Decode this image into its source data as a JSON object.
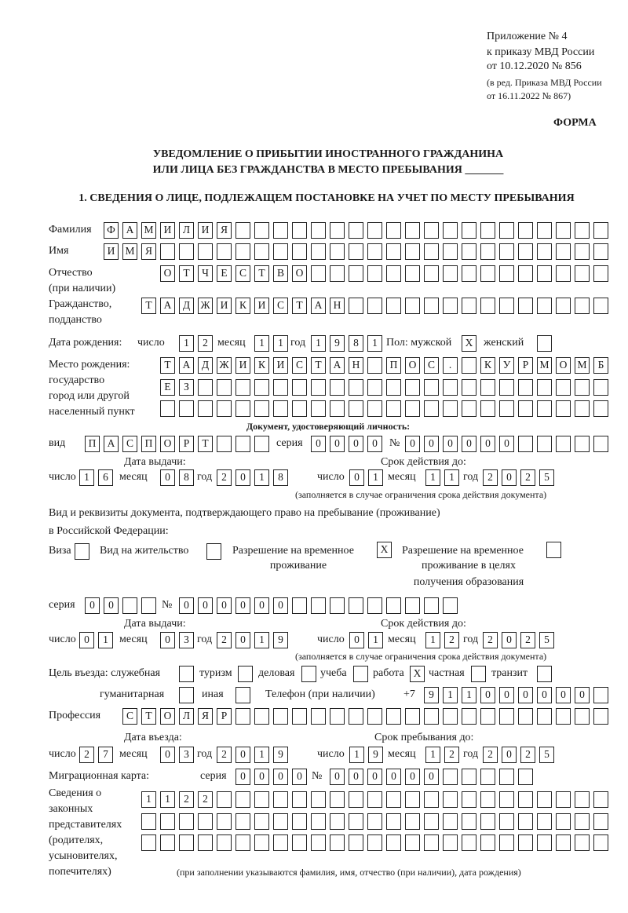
{
  "header": {
    "appendix": "Приложение № 4",
    "order": "к приказу МВД России",
    "order_date": "от 10.12.2020 № 856",
    "revision_line1": "(в ред. Приказа МВД России",
    "revision_line2": "от 16.11.2022 № 867)",
    "form_label": "ФОРМА",
    "title_line1": "УВЕДОМЛЕНИЕ О ПРИБЫТИИ ИНОСТРАННОГО ГРАЖДАНИНА",
    "title_line2": "ИЛИ ЛИЦА БЕЗ ГРАЖДАНСТВА В МЕСТО ПРЕБЫВАНИЯ _______",
    "section1": "1. СВЕДЕНИЯ О ЛИЦЕ, ПОДЛЕЖАЩЕМ ПОСТАНОВКЕ НА УЧЕТ ПО МЕСТУ ПРЕБЫВАНИЯ"
  },
  "labels": {
    "surname": "Фамилия",
    "name": "Имя",
    "patronymic": "Отчество",
    "patronymic_note": "(при наличии)",
    "citizenship": "Гражданство,",
    "citizenship2": "подданство",
    "birth_date": "Дата рождения:",
    "day": "число",
    "month": "месяц",
    "year": "год",
    "sex": "Пол: мужской",
    "female": "женский",
    "birthplace1": "Место рождения:",
    "birthplace2": "государство",
    "birthplace3": "город или другой",
    "birthplace4": "населенный пункт",
    "id_doc": "Документ, удостоверяющий личность:",
    "doc_kind": "вид",
    "series": "серия",
    "number": "№",
    "issue_date": "Дата выдачи:",
    "valid_until": "Срок действия до:",
    "validity_note": "(заполняется в случае ограничения срока действия документа)",
    "stay_doc1": "Вид и реквизиты документа, подтверждающего право на пребывание (проживание)",
    "stay_doc2": "в Российской Федерации:",
    "visa": "Виза",
    "residence": "Вид на жительство",
    "trp1": "Разрешение на временное",
    "trp2": "проживание",
    "trp_edu1": "Разрешение на временное",
    "trp_edu2": "проживание в целях",
    "trp_edu3": "получения образования",
    "purpose": "Цель въезда: служебная",
    "tourism": "туризм",
    "business": "деловая",
    "study": "учеба",
    "work": "работа",
    "private": "частная",
    "transit": "транзит",
    "humanitarian": "гуманитарная",
    "other": "иная",
    "phone": "Телефон (при наличии)",
    "phone_prefix": "+7",
    "profession": "Профессия",
    "entry_date": "Дата въезда:",
    "stay_until": "Срок пребывания до:",
    "migration_card": "Миграционная карта:",
    "reps1": "Сведения о",
    "reps2": "законных",
    "reps3": "представителях",
    "reps4": "(родителях,",
    "reps5": "усыновителях,",
    "reps6": "попечителях)",
    "reps_note": "(при заполнении указываются фамилия, имя, отчество (при наличии), дата рождения)"
  },
  "person": {
    "surname": "ФАМИЛИЯ",
    "name": "ИМЯ",
    "patronymic": "ОТЧЕСТВО",
    "citizenship": "ТАДЖИКИСТАН",
    "birth_day": "12",
    "birth_month": "11",
    "birth_year": "1981",
    "sex_male": "X",
    "sex_female": "",
    "birthplace_line1": "ТАДЖИКИСТАН ПОС. КУРМОМБ",
    "birthplace_line2": "ЕЗ",
    "birthplace_line3": ""
  },
  "id_document": {
    "kind": "ПАСПОРТ",
    "series": "0000",
    "number": "000000",
    "issue_day": "16",
    "issue_month": "08",
    "issue_year": "2018",
    "valid_day": "01",
    "valid_month": "11",
    "valid_year": "2025"
  },
  "stay_document": {
    "visa": "",
    "residence_permit": "",
    "temporary_residence": "X",
    "temporary_residence_education": "",
    "series": "00",
    "number": "000000",
    "issue_day": "01",
    "issue_month": "03",
    "issue_year": "2019",
    "valid_day": "01",
    "valid_month": "12",
    "valid_year": "2025"
  },
  "purpose": {
    "official": "",
    "tourism": "",
    "business": "",
    "study": "",
    "work": "X",
    "private": "",
    "transit": "",
    "humanitarian": "",
    "other": ""
  },
  "phone": "911000000",
  "profession": "СТОЛЯР",
  "entry": {
    "entry_day": "27",
    "entry_month": "03",
    "entry_year": "2019",
    "stay_day": "19",
    "stay_month": "12",
    "stay_year": "2025"
  },
  "migration_card": {
    "series": "0000",
    "number": "000000"
  },
  "legal_representatives": {
    "line1": "1122",
    "line2": "",
    "line3": ""
  }
}
